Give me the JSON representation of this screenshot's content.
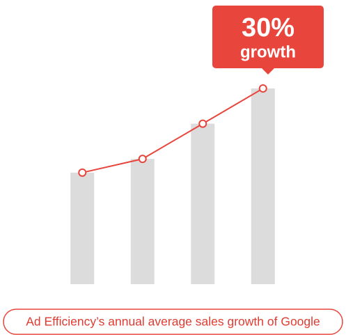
{
  "chart_data": {
    "type": "bar",
    "values": [
      57,
      64,
      82,
      100
    ],
    "ylim": [
      0,
      100
    ],
    "bar_color": "#dcdcdc",
    "line_color": "#e8453c",
    "line": true,
    "callout": {
      "value": "30%",
      "text": "growth"
    },
    "caption": "Ad Efficiency’s annual average sales growth of Google"
  }
}
